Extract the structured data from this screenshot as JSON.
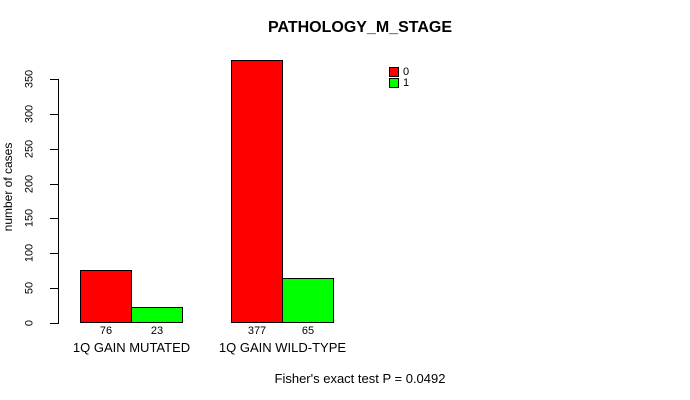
{
  "chart_data": {
    "type": "bar",
    "title": "PATHOLOGY_M_STAGE",
    "ylabel": "number of cases",
    "xlabel": "",
    "categories": [
      "1Q GAIN MUTATED",
      "1Q GAIN WILD-TYPE"
    ],
    "series": [
      {
        "name": "0",
        "color": "#ff0000",
        "values": [
          76,
          377
        ]
      },
      {
        "name": "1",
        "color": "#00ff00",
        "values": [
          23,
          65
        ]
      }
    ],
    "bar_value_labels": [
      [
        76,
        23
      ],
      [
        377,
        65
      ]
    ],
    "ylim": [
      0,
      350
    ],
    "yticks": [
      0,
      50,
      100,
      150,
      200,
      250,
      300,
      350
    ],
    "grid": false,
    "legend_position": "top-right",
    "annotation": "Fisher's exact test P = 0.0492"
  },
  "colors": {
    "background": "#ffffff",
    "axis": "#000000",
    "bar_border": "#000000",
    "series_0": "#ff0000",
    "series_1": "#00ff00"
  }
}
